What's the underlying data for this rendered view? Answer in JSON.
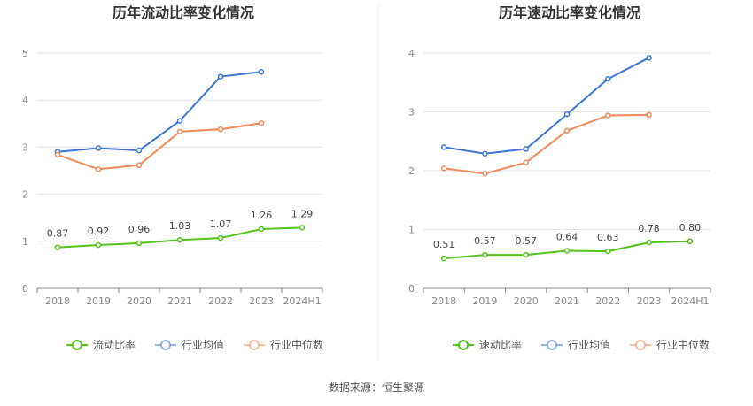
{
  "source": "数据来源：恒生聚源",
  "chart_data": [
    {
      "type": "line",
      "title": "历年流动比率变化情况",
      "categories": [
        "2018",
        "2019",
        "2020",
        "2021",
        "2022",
        "2023",
        "2024H1"
      ],
      "ylim": [
        0,
        5
      ],
      "yticks": [
        "0",
        "1",
        "2",
        "3",
        "4",
        "5"
      ],
      "grid": true,
      "legend_position": "bottom",
      "series": [
        {
          "name": "流动比率",
          "color": "#52c41a",
          "values": [
            0.87,
            0.92,
            0.96,
            1.03,
            1.07,
            1.26,
            1.29
          ],
          "labels": [
            "0.87",
            "0.92",
            "0.96",
            "1.03",
            "1.07",
            "1.26",
            "1.29"
          ]
        },
        {
          "name": "行业均值",
          "color": "#3a77d6",
          "values": [
            2.9,
            2.98,
            2.93,
            3.56,
            4.5,
            4.6,
            null
          ]
        },
        {
          "name": "行业中位数",
          "color": "#f0895a",
          "values": [
            2.84,
            2.53,
            2.62,
            3.33,
            3.38,
            3.51,
            null
          ]
        }
      ]
    },
    {
      "type": "line",
      "title": "历年速动比率变化情况",
      "categories": [
        "2018",
        "2019",
        "2020",
        "2021",
        "2022",
        "2023",
        "2024H1"
      ],
      "ylim": [
        0,
        4
      ],
      "yticks": [
        "0",
        "1",
        "2",
        "3",
        "4"
      ],
      "grid": true,
      "legend_position": "bottom",
      "series": [
        {
          "name": "速动比率",
          "color": "#52c41a",
          "values": [
            0.51,
            0.57,
            0.57,
            0.64,
            0.63,
            0.78,
            0.8
          ],
          "labels": [
            "0.51",
            "0.57",
            "0.57",
            "0.64",
            "0.63",
            "0.78",
            "0.80"
          ]
        },
        {
          "name": "行业均值",
          "color": "#3a77d6",
          "values": [
            2.4,
            2.29,
            2.37,
            2.96,
            3.56,
            3.92,
            null
          ]
        },
        {
          "name": "行业中位数",
          "color": "#f0895a",
          "values": [
            2.04,
            1.95,
            2.14,
            2.68,
            2.94,
            2.95,
            null
          ]
        }
      ]
    }
  ]
}
